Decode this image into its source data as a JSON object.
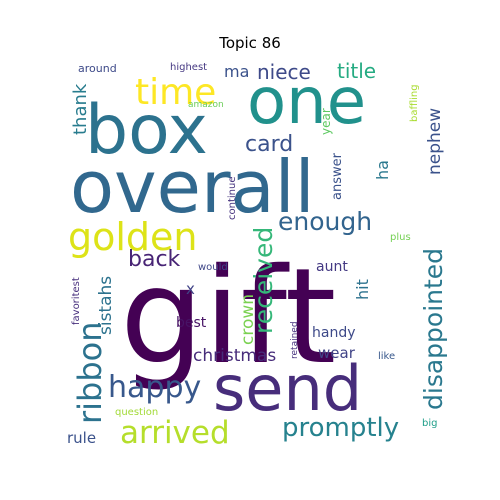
{
  "title": "Topic 86",
  "words": [
    {
      "text": "gift",
      "color": "#440154"
    },
    {
      "text": "overall",
      "color": "#31688e"
    },
    {
      "text": "box",
      "color": "#2c728e"
    },
    {
      "text": "send",
      "color": "#472d7b"
    },
    {
      "text": "one",
      "color": "#21918c"
    },
    {
      "text": "time",
      "color": "#fde725"
    },
    {
      "text": "golden",
      "color": "#dde318"
    },
    {
      "text": "ribbon",
      "color": "#2c728e"
    },
    {
      "text": "happy",
      "color": "#38588c"
    },
    {
      "text": "arrived",
      "color": "#b5de2b"
    },
    {
      "text": "promptly",
      "color": "#26828e"
    },
    {
      "text": "disappointed",
      "color": "#2a788e"
    },
    {
      "text": "received",
      "color": "#35b779"
    },
    {
      "text": "enough",
      "color": "#32648e"
    },
    {
      "text": "card",
      "color": "#3b528b"
    },
    {
      "text": "back",
      "color": "#482475"
    },
    {
      "text": "niece",
      "color": "#3e4a89"
    },
    {
      "text": "title",
      "color": "#25ab82"
    },
    {
      "text": "christmas",
      "color": "#472c7a"
    },
    {
      "text": "nephew",
      "color": "#3b528b"
    },
    {
      "text": "thank",
      "color": "#287c8e"
    },
    {
      "text": "sistahs",
      "color": "#2c728e"
    },
    {
      "text": "crown",
      "color": "#7ad151"
    },
    {
      "text": "wear",
      "color": "#414487"
    },
    {
      "text": "ma",
      "color": "#3b528b"
    },
    {
      "text": "ha",
      "color": "#2a788e"
    },
    {
      "text": "answer",
      "color": "#3b528b"
    },
    {
      "text": "year",
      "color": "#5ec962"
    },
    {
      "text": "hit",
      "color": "#2c728e"
    },
    {
      "text": "aunt",
      "color": "#443983"
    },
    {
      "text": "handy",
      "color": "#3e4a89"
    },
    {
      "text": "best",
      "color": "#471365"
    },
    {
      "text": "rule",
      "color": "#3b528b"
    },
    {
      "text": "x",
      "color": "#404387"
    },
    {
      "text": "continue",
      "color": "#46337e"
    },
    {
      "text": "around",
      "color": "#3e4a89"
    },
    {
      "text": "highest",
      "color": "#453882"
    },
    {
      "text": "amazon",
      "color": "#6ccd5a"
    },
    {
      "text": "baffling",
      "color": "#aadc32"
    },
    {
      "text": "favoritest",
      "color": "#472f7d"
    },
    {
      "text": "would",
      "color": "#3f4788"
    },
    {
      "text": "retained",
      "color": "#46327e"
    },
    {
      "text": "like",
      "color": "#38588c"
    },
    {
      "text": "plus",
      "color": "#75d054"
    },
    {
      "text": "question",
      "color": "#a2da37"
    },
    {
      "text": "big",
      "color": "#1f9e89"
    }
  ]
}
